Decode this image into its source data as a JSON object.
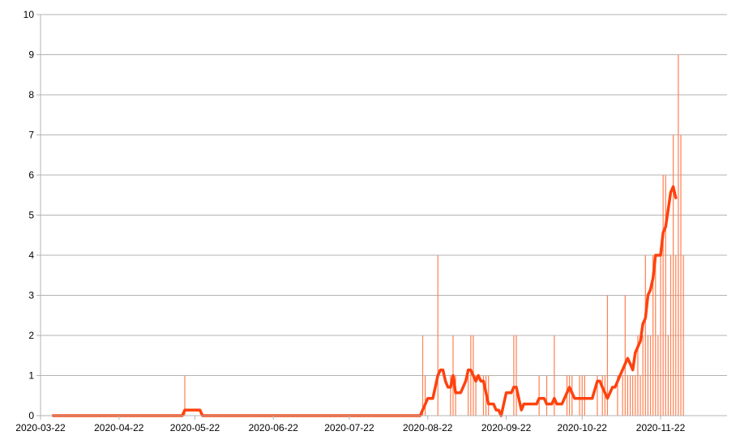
{
  "colors": {
    "bar": "#ff7f50",
    "line": "#ff420e",
    "grid": "#b3b3b3",
    "background": "#ffffff"
  },
  "chart_data": {
    "type": "bar",
    "title": "",
    "xlabel": "",
    "ylabel": "",
    "x_axis": "date",
    "ylim": [
      0,
      10
    ],
    "y_ticks": [
      0,
      1,
      2,
      3,
      4,
      5,
      6,
      7,
      8,
      9,
      10
    ],
    "x_ticks": [
      "2020-03-22",
      "2020-04-22",
      "2020-05-22",
      "2020-06-22",
      "2020-07-22",
      "2020-08-22",
      "2020-09-22",
      "2020-10-22",
      "2020-11-22"
    ],
    "x_range": [
      "2020-03-22",
      "2020-12-05"
    ],
    "grid": true,
    "legend": "none",
    "series": [
      {
        "kind": "bars",
        "points": [
          [
            "2020-05-18",
            1
          ],
          [
            "2020-08-20",
            2
          ],
          [
            "2020-08-21",
            1
          ],
          [
            "2020-08-26",
            4
          ],
          [
            "2020-08-31",
            1
          ],
          [
            "2020-09-01",
            2
          ],
          [
            "2020-09-02",
            1
          ],
          [
            "2020-09-07",
            1
          ],
          [
            "2020-09-08",
            2
          ],
          [
            "2020-09-09",
            2
          ],
          [
            "2020-09-10",
            1
          ],
          [
            "2020-09-13",
            1
          ],
          [
            "2020-09-14",
            1
          ],
          [
            "2020-09-15",
            1
          ],
          [
            "2020-09-25",
            2
          ],
          [
            "2020-09-26",
            2
          ],
          [
            "2020-10-05",
            1
          ],
          [
            "2020-10-08",
            1
          ],
          [
            "2020-10-11",
            2
          ],
          [
            "2020-10-16",
            1
          ],
          [
            "2020-10-17",
            1
          ],
          [
            "2020-10-18",
            1
          ],
          [
            "2020-10-21",
            1
          ],
          [
            "2020-10-22",
            1
          ],
          [
            "2020-10-23",
            1
          ],
          [
            "2020-10-28",
            1
          ],
          [
            "2020-10-30",
            1
          ],
          [
            "2020-10-31",
            1
          ],
          [
            "2020-11-01",
            3
          ],
          [
            "2020-11-05",
            1
          ],
          [
            "2020-11-07",
            1
          ],
          [
            "2020-11-08",
            3
          ],
          [
            "2020-11-09",
            1
          ],
          [
            "2020-11-10",
            1
          ],
          [
            "2020-11-11",
            1
          ],
          [
            "2020-11-12",
            1
          ],
          [
            "2020-11-13",
            2
          ],
          [
            "2020-11-14",
            1
          ],
          [
            "2020-11-15",
            2
          ],
          [
            "2020-11-16",
            4
          ],
          [
            "2020-11-17",
            2
          ],
          [
            "2020-11-18",
            2
          ],
          [
            "2020-11-19",
            4
          ],
          [
            "2020-11-20",
            4
          ],
          [
            "2020-11-21",
            2
          ],
          [
            "2020-11-22",
            4
          ],
          [
            "2020-11-23",
            6
          ],
          [
            "2020-11-24",
            6
          ],
          [
            "2020-11-25",
            2
          ],
          [
            "2020-11-26",
            4
          ],
          [
            "2020-11-27",
            7
          ],
          [
            "2020-11-28",
            4
          ],
          [
            "2020-11-29",
            9
          ],
          [
            "2020-11-30",
            7
          ],
          [
            "2020-12-01",
            4
          ]
        ]
      },
      {
        "kind": "line",
        "points": [
          [
            "2020-03-27",
            0
          ],
          [
            "2020-05-17",
            0
          ],
          [
            "2020-05-18",
            0.14
          ],
          [
            "2020-05-24",
            0.14
          ],
          [
            "2020-05-25",
            0
          ],
          [
            "2020-08-19",
            0
          ],
          [
            "2020-08-22",
            0.43
          ],
          [
            "2020-08-24",
            0.43
          ],
          [
            "2020-08-26",
            1.0
          ],
          [
            "2020-08-27",
            1.14
          ],
          [
            "2020-08-28",
            1.14
          ],
          [
            "2020-08-29",
            0.86
          ],
          [
            "2020-08-30",
            0.71
          ],
          [
            "2020-08-31",
            0.71
          ],
          [
            "2020-09-01",
            1.0
          ],
          [
            "2020-09-02",
            0.57
          ],
          [
            "2020-09-04",
            0.57
          ],
          [
            "2020-09-06",
            0.86
          ],
          [
            "2020-09-07",
            1.14
          ],
          [
            "2020-09-08",
            1.14
          ],
          [
            "2020-09-10",
            0.86
          ],
          [
            "2020-09-11",
            1.0
          ],
          [
            "2020-09-12",
            0.86
          ],
          [
            "2020-09-13",
            0.86
          ],
          [
            "2020-09-15",
            0.29
          ],
          [
            "2020-09-17",
            0.29
          ],
          [
            "2020-09-18",
            0.14
          ],
          [
            "2020-09-19",
            0.14
          ],
          [
            "2020-09-20",
            0
          ],
          [
            "2020-09-22",
            0.57
          ],
          [
            "2020-09-24",
            0.57
          ],
          [
            "2020-09-25",
            0.71
          ],
          [
            "2020-09-26",
            0.71
          ],
          [
            "2020-09-28",
            0.14
          ],
          [
            "2020-09-29",
            0.29
          ],
          [
            "2020-10-04",
            0.29
          ],
          [
            "2020-10-05",
            0.43
          ],
          [
            "2020-10-07",
            0.43
          ],
          [
            "2020-10-08",
            0.29
          ],
          [
            "2020-10-10",
            0.29
          ],
          [
            "2020-10-11",
            0.43
          ],
          [
            "2020-10-12",
            0.29
          ],
          [
            "2020-10-14",
            0.29
          ],
          [
            "2020-10-17",
            0.71
          ],
          [
            "2020-10-19",
            0.43
          ],
          [
            "2020-10-25",
            0.43
          ],
          [
            "2020-10-26",
            0.43
          ],
          [
            "2020-10-28",
            0.86
          ],
          [
            "2020-10-29",
            0.86
          ],
          [
            "2020-10-30",
            0.71
          ],
          [
            "2020-11-01",
            0.43
          ],
          [
            "2020-11-03",
            0.71
          ],
          [
            "2020-11-04",
            0.71
          ],
          [
            "2020-11-08",
            1.29
          ],
          [
            "2020-11-09",
            1.43
          ],
          [
            "2020-11-10",
            1.29
          ],
          [
            "2020-11-11",
            1.14
          ],
          [
            "2020-11-12",
            1.57
          ],
          [
            "2020-11-14",
            1.86
          ],
          [
            "2020-11-15",
            2.29
          ],
          [
            "2020-11-16",
            2.43
          ],
          [
            "2020-11-17",
            3.0
          ],
          [
            "2020-11-18",
            3.14
          ],
          [
            "2020-11-19",
            3.43
          ],
          [
            "2020-11-20",
            4.0
          ],
          [
            "2020-11-22",
            4.0
          ],
          [
            "2020-11-23",
            4.57
          ],
          [
            "2020-11-24",
            4.71
          ],
          [
            "2020-11-25",
            5.14
          ],
          [
            "2020-11-26",
            5.57
          ],
          [
            "2020-11-27",
            5.71
          ],
          [
            "2020-11-28",
            5.43
          ]
        ]
      }
    ]
  }
}
